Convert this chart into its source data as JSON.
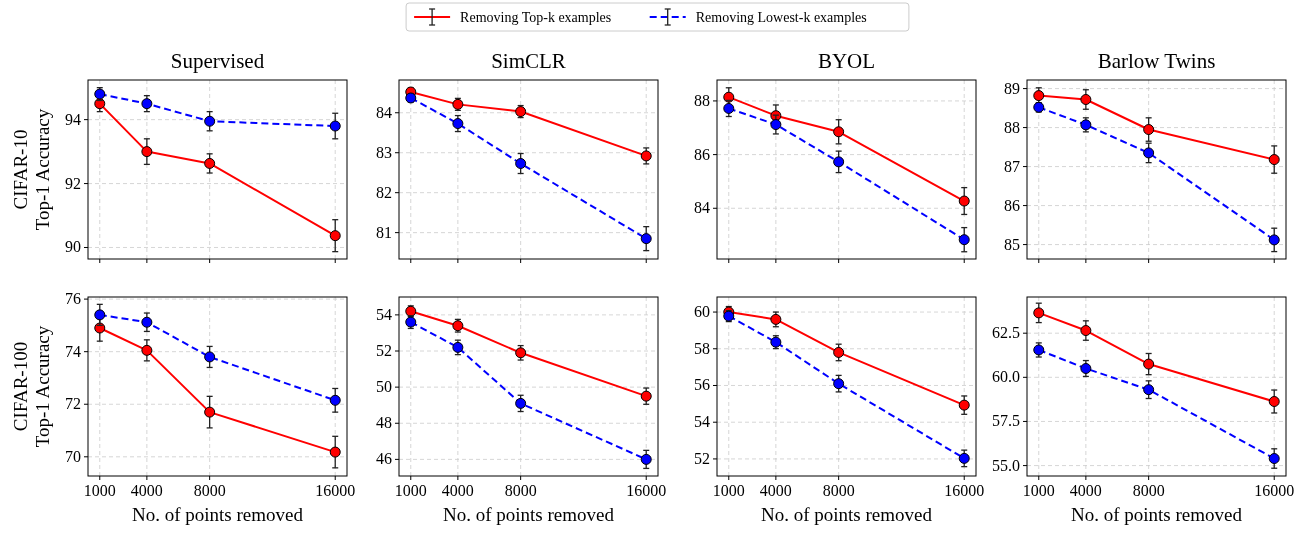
{
  "chart_data": [
    {
      "type": "line",
      "title": "Supervised",
      "ylabel": "CIFAR-10\nTop-1 Accuracy",
      "x": [
        1000,
        4000,
        8000,
        16000
      ],
      "xlim": [
        250,
        16750
      ],
      "xticks": [
        1000,
        4000,
        8000,
        16000
      ],
      "ylim": [
        89.64,
        95.24
      ],
      "yticks": [
        90,
        92,
        94
      ],
      "grid": true,
      "marker": "circle",
      "tick_labels": "y",
      "legend": "top",
      "series": [
        {
          "name": "Removing Top-k examples",
          "color": "#ff0000",
          "line_style": "solid",
          "values": [
            94.5,
            93.0,
            92.63,
            90.37
          ],
          "errors": [
            0.25,
            0.4,
            0.3,
            0.5
          ]
        },
        {
          "name": "Removing Lowest-k examples",
          "color": "#0000ff",
          "line_style": "dashed",
          "values": [
            94.8,
            94.5,
            93.95,
            93.8
          ],
          "errors": [
            0.2,
            0.25,
            0.3,
            0.4
          ]
        }
      ]
    },
    {
      "type": "line",
      "title": "SimCLR",
      "x": [
        1000,
        4000,
        8000,
        16000
      ],
      "xlim": [
        250,
        16750
      ],
      "xticks": [
        1000,
        4000,
        8000,
        16000
      ],
      "ylim": [
        80.34,
        84.82
      ],
      "yticks": [
        81,
        82,
        83,
        84
      ],
      "grid": true,
      "marker": "circle",
      "tick_labels": "y",
      "series": [
        {
          "color": "#ff0000",
          "line_style": "solid",
          "values": [
            84.52,
            84.21,
            84.03,
            82.92
          ],
          "errors": [
            0.1,
            0.15,
            0.15,
            0.2
          ]
        },
        {
          "color": "#0000ff",
          "line_style": "dashed",
          "values": [
            84.37,
            83.73,
            82.73,
            80.85
          ],
          "errors": [
            0.1,
            0.2,
            0.25,
            0.3
          ]
        }
      ]
    },
    {
      "type": "line",
      "title": "BYOL",
      "x": [
        1000,
        4000,
        8000,
        16000
      ],
      "xlim": [
        250,
        16750
      ],
      "xticks": [
        1000,
        4000,
        8000,
        16000
      ],
      "ylim": [
        82.11,
        88.78
      ],
      "yticks": [
        84,
        86,
        88
      ],
      "grid": true,
      "marker": "circle",
      "tick_labels": "y",
      "series": [
        {
          "color": "#ff0000",
          "line_style": "solid",
          "values": [
            88.14,
            87.45,
            86.85,
            84.27
          ],
          "errors": [
            0.35,
            0.4,
            0.45,
            0.5
          ]
        },
        {
          "color": "#0000ff",
          "line_style": "dashed",
          "values": [
            87.72,
            87.12,
            85.73,
            82.83
          ],
          "errors": [
            0.3,
            0.35,
            0.4,
            0.45
          ]
        }
      ]
    },
    {
      "type": "line",
      "title": "Barlow Twins",
      "x": [
        1000,
        4000,
        8000,
        16000
      ],
      "xlim": [
        250,
        16750
      ],
      "xticks": [
        1000,
        4000,
        8000,
        16000
      ],
      "ylim": [
        84.63,
        89.22
      ],
      "yticks": [
        85,
        86,
        87,
        88,
        89
      ],
      "grid": true,
      "marker": "circle",
      "tick_labels": "y",
      "series": [
        {
          "color": "#ff0000",
          "line_style": "solid",
          "values": [
            88.82,
            88.72,
            87.95,
            87.18
          ],
          "errors": [
            0.2,
            0.25,
            0.3,
            0.35
          ]
        },
        {
          "color": "#0000ff",
          "line_style": "dashed",
          "values": [
            88.52,
            88.07,
            87.35,
            85.12
          ],
          "errors": [
            0.12,
            0.18,
            0.25,
            0.3
          ]
        }
      ]
    },
    {
      "type": "line",
      "xlabel": "No. of points removed",
      "ylabel": "CIFAR-100\nTop-1 Accuracy",
      "x": [
        1000,
        4000,
        8000,
        16000
      ],
      "xlim": [
        250,
        16750
      ],
      "xticks": [
        1000,
        4000,
        8000,
        16000
      ],
      "ylim": [
        69.27,
        76.08
      ],
      "yticks": [
        70,
        72,
        74,
        76
      ],
      "grid": true,
      "marker": "circle",
      "series": [
        {
          "color": "#ff0000",
          "line_style": "solid",
          "values": [
            74.9,
            74.05,
            71.7,
            70.18
          ],
          "errors": [
            0.5,
            0.4,
            0.6,
            0.6
          ]
        },
        {
          "color": "#0000ff",
          "line_style": "dashed",
          "values": [
            75.4,
            75.12,
            73.8,
            72.15
          ],
          "errors": [
            0.4,
            0.35,
            0.4,
            0.45
          ]
        }
      ]
    },
    {
      "type": "line",
      "xlabel": "No. of points removed",
      "x": [
        1000,
        4000,
        8000,
        16000
      ],
      "xlim": [
        250,
        16750
      ],
      "xticks": [
        1000,
        4000,
        8000,
        16000
      ],
      "ylim": [
        45.08,
        54.99
      ],
      "yticks": [
        46,
        48,
        50,
        52,
        54
      ],
      "grid": true,
      "marker": "circle",
      "series": [
        {
          "color": "#ff0000",
          "line_style": "solid",
          "values": [
            54.2,
            53.4,
            51.9,
            49.5
          ],
          "errors": [
            0.3,
            0.35,
            0.4,
            0.45
          ]
        },
        {
          "color": "#0000ff",
          "line_style": "dashed",
          "values": [
            53.6,
            52.2,
            49.1,
            46.0
          ],
          "errors": [
            0.35,
            0.4,
            0.45,
            0.5
          ]
        }
      ]
    },
    {
      "type": "line",
      "xlabel": "No. of points removed",
      "x": [
        1000,
        4000,
        8000,
        16000
      ],
      "xlim": [
        250,
        16750
      ],
      "xticks": [
        1000,
        4000,
        8000,
        16000
      ],
      "ylim": [
        51.07,
        60.82
      ],
      "yticks": [
        52,
        54,
        56,
        58,
        60
      ],
      "grid": true,
      "marker": "circle",
      "series": [
        {
          "color": "#ff0000",
          "line_style": "solid",
          "values": [
            60.0,
            59.6,
            57.8,
            54.93
          ],
          "errors": [
            0.3,
            0.4,
            0.45,
            0.5
          ]
        },
        {
          "color": "#0000ff",
          "line_style": "dashed",
          "values": [
            59.78,
            58.36,
            56.1,
            52.03
          ],
          "errors": [
            0.3,
            0.35,
            0.45,
            0.45
          ]
        }
      ]
    },
    {
      "type": "line",
      "xlabel": "No. of points removed",
      "x": [
        1000,
        4000,
        8000,
        16000
      ],
      "xlim": [
        250,
        16750
      ],
      "xticks": [
        1000,
        4000,
        8000,
        16000
      ],
      "ylim": [
        54.41,
        64.55
      ],
      "yticks": [
        {
          "value": 55,
          "label": "55.0"
        },
        {
          "value": 57.5,
          "label": "57.5"
        },
        {
          "value": 60,
          "label": "60.0"
        },
        {
          "value": 62.5,
          "label": "62.5"
        }
      ],
      "grid": true,
      "marker": "circle",
      "series": [
        {
          "color": "#ff0000",
          "line_style": "solid",
          "values": [
            63.65,
            62.65,
            60.75,
            58.63
          ],
          "errors": [
            0.55,
            0.55,
            0.6,
            0.65
          ]
        },
        {
          "color": "#0000ff",
          "line_style": "dashed",
          "values": [
            61.55,
            60.5,
            59.3,
            55.4
          ],
          "errors": [
            0.4,
            0.45,
            0.5,
            0.55
          ]
        }
      ]
    }
  ]
}
